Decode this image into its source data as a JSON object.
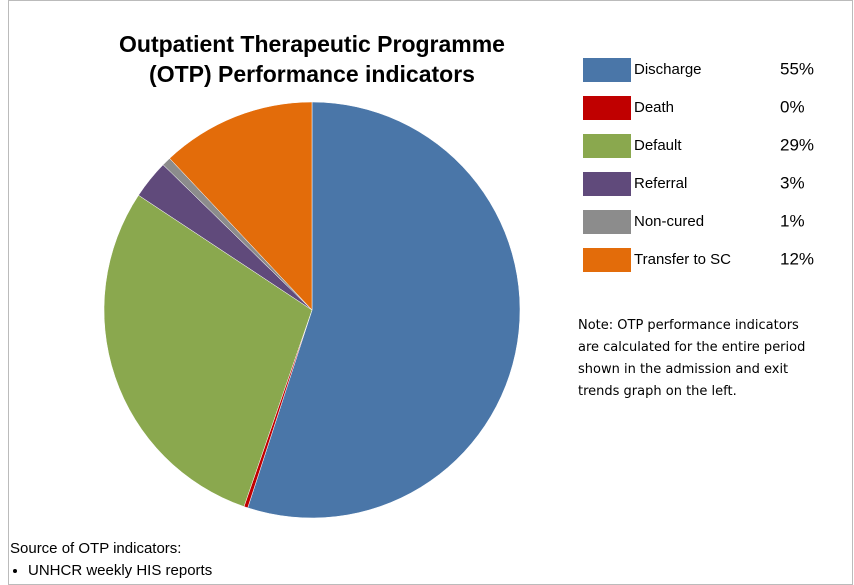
{
  "chart_data": {
    "type": "pie",
    "title": "Outpatient Therapeutic Programme (OTP) Performance indicators",
    "categories": [
      "Discharge",
      "Death",
      "Default",
      "Referral",
      "Non-cured",
      "Transfer to SC"
    ],
    "values": [
      55,
      0.3,
      29,
      3,
      0.7,
      12
    ],
    "value_labels": [
      "55%",
      "0%",
      "29%",
      "3%",
      "1%",
      "12%"
    ],
    "colors": [
      "#4a76a8",
      "#c00000",
      "#8aa84e",
      "#604a7b",
      "#8c8c8c",
      "#e36c0a"
    ],
    "note": "Note: OTP performance indicators are calculated for the entire period shown in the admission and exit trends graph on the left.",
    "source_title": "Source of OTP indicators:",
    "sources": [
      "UNHCR weekly HIS reports"
    ]
  }
}
